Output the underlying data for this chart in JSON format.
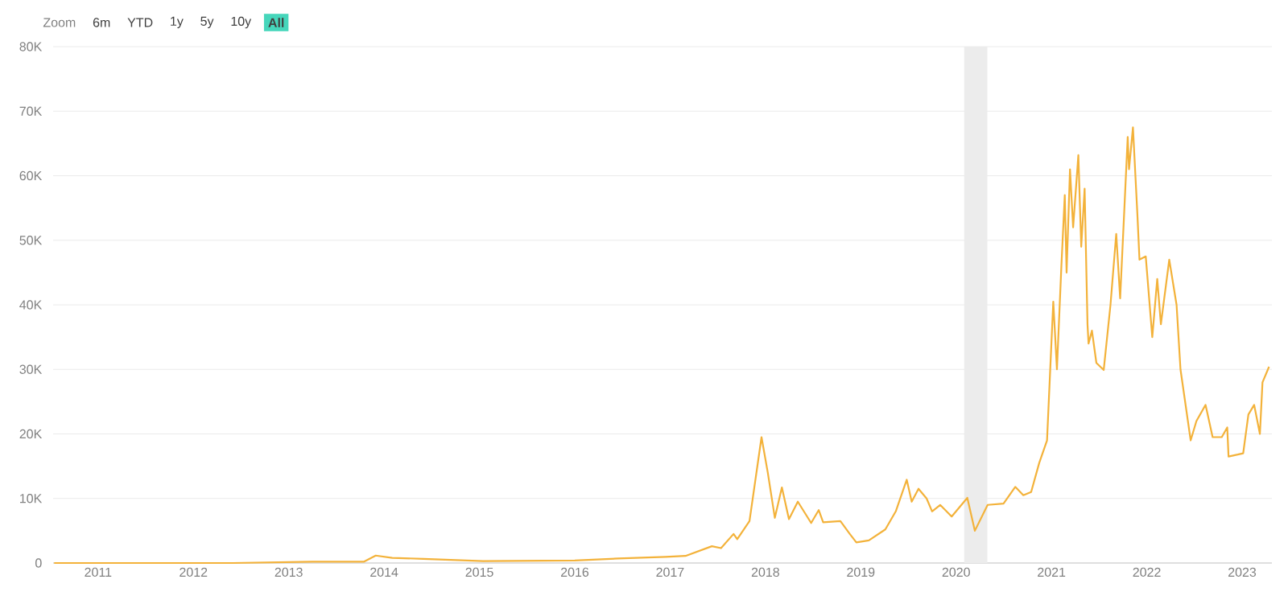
{
  "chart_data": {
    "type": "line",
    "annotations": [
      "Zoom",
      "6m",
      "YTD",
      "1y",
      "5y",
      "10y",
      "All"
    ],
    "xlim": [
      "2010-07-13",
      "2023-04-25"
    ],
    "xticks": [
      "2011",
      "2012",
      "2013",
      "2014",
      "2015",
      "2016",
      "2017",
      "2018",
      "2019",
      "2020",
      "2021",
      "2022",
      "2023"
    ],
    "ylim": [
      0,
      80000
    ],
    "yticks": [
      0,
      {
        "value": 10000,
        "label": "10K"
      },
      {
        "value": 20000,
        "label": "20K"
      },
      {
        "value": 30000,
        "label": "30K"
      },
      {
        "value": 40000,
        "label": "40K"
      },
      {
        "value": 50000,
        "label": "50K"
      },
      {
        "value": 60000,
        "label": "60K"
      },
      {
        "value": 70000,
        "label": "70K"
      },
      {
        "value": 80000,
        "label": "80K"
      }
    ],
    "grid": "y",
    "bands": [
      {
        "axis": "x",
        "from": "2020-02-01",
        "to": "2020-04-30",
        "color": "#ececec"
      }
    ],
    "series": [
      {
        "color": "#f3b23a",
        "x": [
          "2010-07-17",
          "2012-06-01",
          "2013-04-01",
          "2013-10-15",
          "2013-11-30",
          "2014-02-01",
          "2014-06-01",
          "2015-01-15",
          "2016-01-01",
          "2016-06-15",
          "2016-12-15",
          "2017-03-01",
          "2017-06-10",
          "2017-07-15",
          "2017-09-01",
          "2017-09-15",
          "2017-11-01",
          "2017-12-17",
          "2018-01-10",
          "2018-02-06",
          "2018-03-05",
          "2018-04-01",
          "2018-05-05",
          "2018-06-25",
          "2018-07-24",
          "2018-08-10",
          "2018-10-15",
          "2018-11-20",
          "2018-12-15",
          "2019-02-01",
          "2019-04-05",
          "2019-05-15",
          "2019-06-26",
          "2019-07-15",
          "2019-08-10",
          "2019-09-10",
          "2019-10-01",
          "2019-11-01",
          "2019-12-15",
          "2020-02-13",
          "2020-03-13",
          "2020-05-01",
          "2020-07-01",
          "2020-08-15",
          "2020-09-15",
          "2020-10-15",
          "2020-11-15",
          "2020-12-15",
          "2021-01-08",
          "2021-01-22",
          "2021-02-08",
          "2021-02-21",
          "2021-02-28",
          "2021-03-13",
          "2021-03-25",
          "2021-04-14",
          "2021-04-25",
          "2021-05-08",
          "2021-05-19",
          "2021-05-23",
          "2021-06-05",
          "2021-06-22",
          "2021-07-20",
          "2021-08-15",
          "2021-09-06",
          "2021-09-21",
          "2021-10-20",
          "2021-10-25",
          "2021-11-09",
          "2021-11-26",
          "2021-12-04",
          "2021-12-28",
          "2022-01-22",
          "2022-02-10",
          "2022-02-24",
          "2022-03-28",
          "2022-04-25",
          "2022-05-10",
          "2022-06-18",
          "2022-07-10",
          "2022-08-14",
          "2022-09-10",
          "2022-10-15",
          "2022-11-05",
          "2022-11-10",
          "2022-12-15",
          "2023-01-05",
          "2023-01-25",
          "2023-02-16",
          "2023-03-10",
          "2023-03-20",
          "2023-04-14"
        ],
        "values": [
          0,
          0,
          200,
          200,
          1150,
          800,
          650,
          300,
          400,
          700,
          950,
          1100,
          2600,
          2300,
          4500,
          3700,
          6500,
          19500,
          14000,
          7000,
          11700,
          6800,
          9500,
          6200,
          8200,
          6300,
          6500,
          4500,
          3200,
          3500,
          5200,
          8000,
          12900,
          9500,
          11500,
          10000,
          8000,
          9000,
          7200,
          10100,
          5000,
          9000,
          9200,
          11800,
          10500,
          11000,
          15500,
          19000,
          40500,
          30000,
          46000,
          57000,
          45000,
          61000,
          52000,
          63200,
          49000,
          58000,
          37000,
          34000,
          36000,
          31000,
          29900,
          40000,
          51000,
          41000,
          66000,
          61000,
          67500,
          54000,
          47000,
          47500,
          35000,
          44000,
          37000,
          47000,
          40000,
          30000,
          19000,
          22000,
          24500,
          19500,
          19500,
          21000,
          16500,
          16800,
          17000,
          23000,
          24500,
          20000,
          28000,
          30400
        ]
      }
    ]
  }
}
